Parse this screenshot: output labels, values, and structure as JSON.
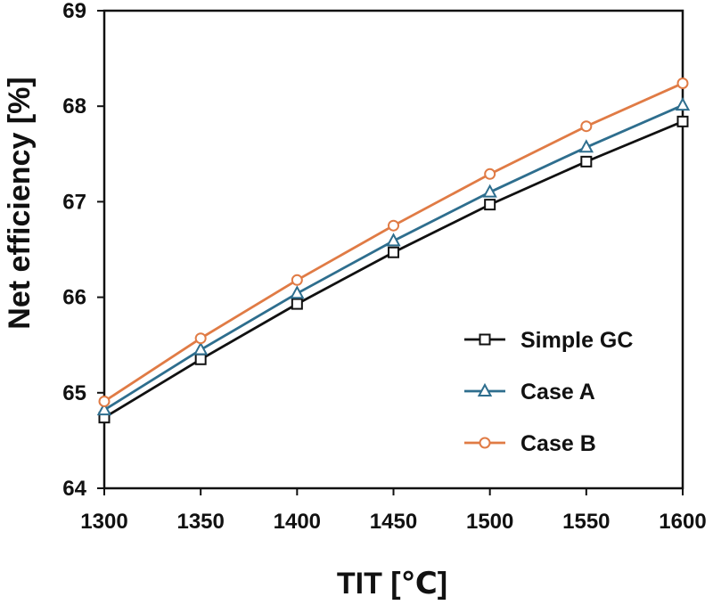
{
  "chart_data": {
    "type": "line",
    "title": "",
    "xlabel": "TIT [℃]",
    "ylabel": "Net efficiency [%]",
    "x": [
      1300,
      1350,
      1400,
      1450,
      1500,
      1550,
      1600
    ],
    "xlim": [
      1300,
      1600
    ],
    "ylim": [
      64,
      69
    ],
    "xticks": [
      "1300",
      "1350",
      "1400",
      "1450",
      "1500",
      "1550",
      "1600"
    ],
    "yticks": [
      "64",
      "65",
      "66",
      "67",
      "68",
      "69"
    ],
    "grid": false,
    "legend_position": "bottom-right",
    "series": [
      {
        "name": "Simple GC",
        "color": "#111111",
        "marker": "square",
        "values": [
          64.74,
          65.35,
          65.93,
          66.47,
          66.97,
          67.42,
          67.84
        ]
      },
      {
        "name": "Case A",
        "color": "#2e6e8e",
        "marker": "triangle",
        "values": [
          64.82,
          65.45,
          66.04,
          66.59,
          67.1,
          67.57,
          68.01
        ]
      },
      {
        "name": "Case B",
        "color": "#e07b45",
        "marker": "circle",
        "values": [
          64.91,
          65.57,
          66.18,
          66.75,
          67.29,
          67.79,
          68.24
        ]
      }
    ]
  }
}
